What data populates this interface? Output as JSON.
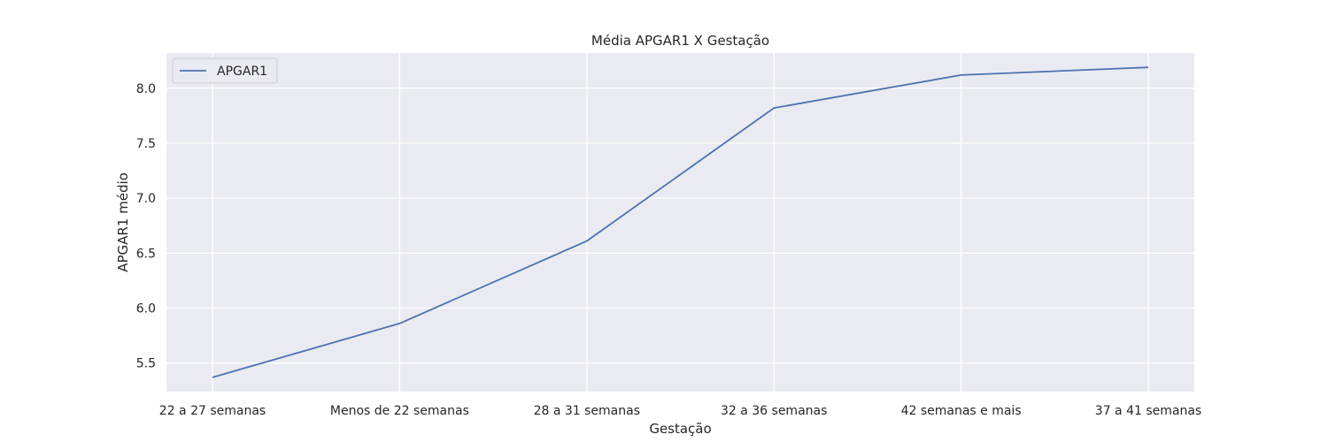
{
  "chart_data": {
    "type": "line",
    "title": "Média APGAR1 X Gestação",
    "xlabel": "Gestação",
    "ylabel": "APGAR1 médio",
    "categories": [
      "22 a 27 semanas",
      "Menos de 22 semanas",
      "28 a 31 semanas",
      "32 a 36 semanas",
      "42 semanas e mais",
      "37 a 41 semanas"
    ],
    "series": [
      {
        "name": "APGAR1",
        "values": [
          5.37,
          5.86,
          6.61,
          7.82,
          8.12,
          8.19
        ],
        "color": "#4c72b0"
      }
    ],
    "yticks": [
      5.5,
      6.0,
      6.5,
      7.0,
      7.5,
      8.0
    ],
    "ylim": [
      5.24,
      8.32
    ],
    "grid": true,
    "legend": "top-left",
    "colors": {
      "background": "#eaeaf2",
      "grid": "#ffffff"
    }
  }
}
